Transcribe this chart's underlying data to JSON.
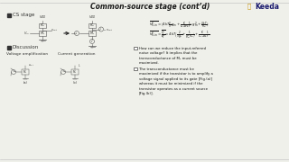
{
  "title": "Common-source stage (cont’d)",
  "bg_color": "#f0f0eb",
  "title_fontsize": 5.5,
  "logo_text": "Keeda",
  "bullet1": "CS stage",
  "bullet2": "Discussion",
  "discussion_label1": "Voltage amplification",
  "discussion_label2": "Current generation",
  "discussion_point1": "How can we reduce the input-referred\nnoise voltage? It implies that the\ntransconductance of M₁ must be\nmaximized.",
  "discussion_point2": "The transconductance must be\nmaximized if the transistor is to amplify a\nvoltage signal applied to its gate [Fig.(a)]\nwhereas it must be minimized if the\ntransistor operates as a current source\n[Fig.(b)].",
  "circuit_color": "#555555",
  "text_color": "#333333"
}
